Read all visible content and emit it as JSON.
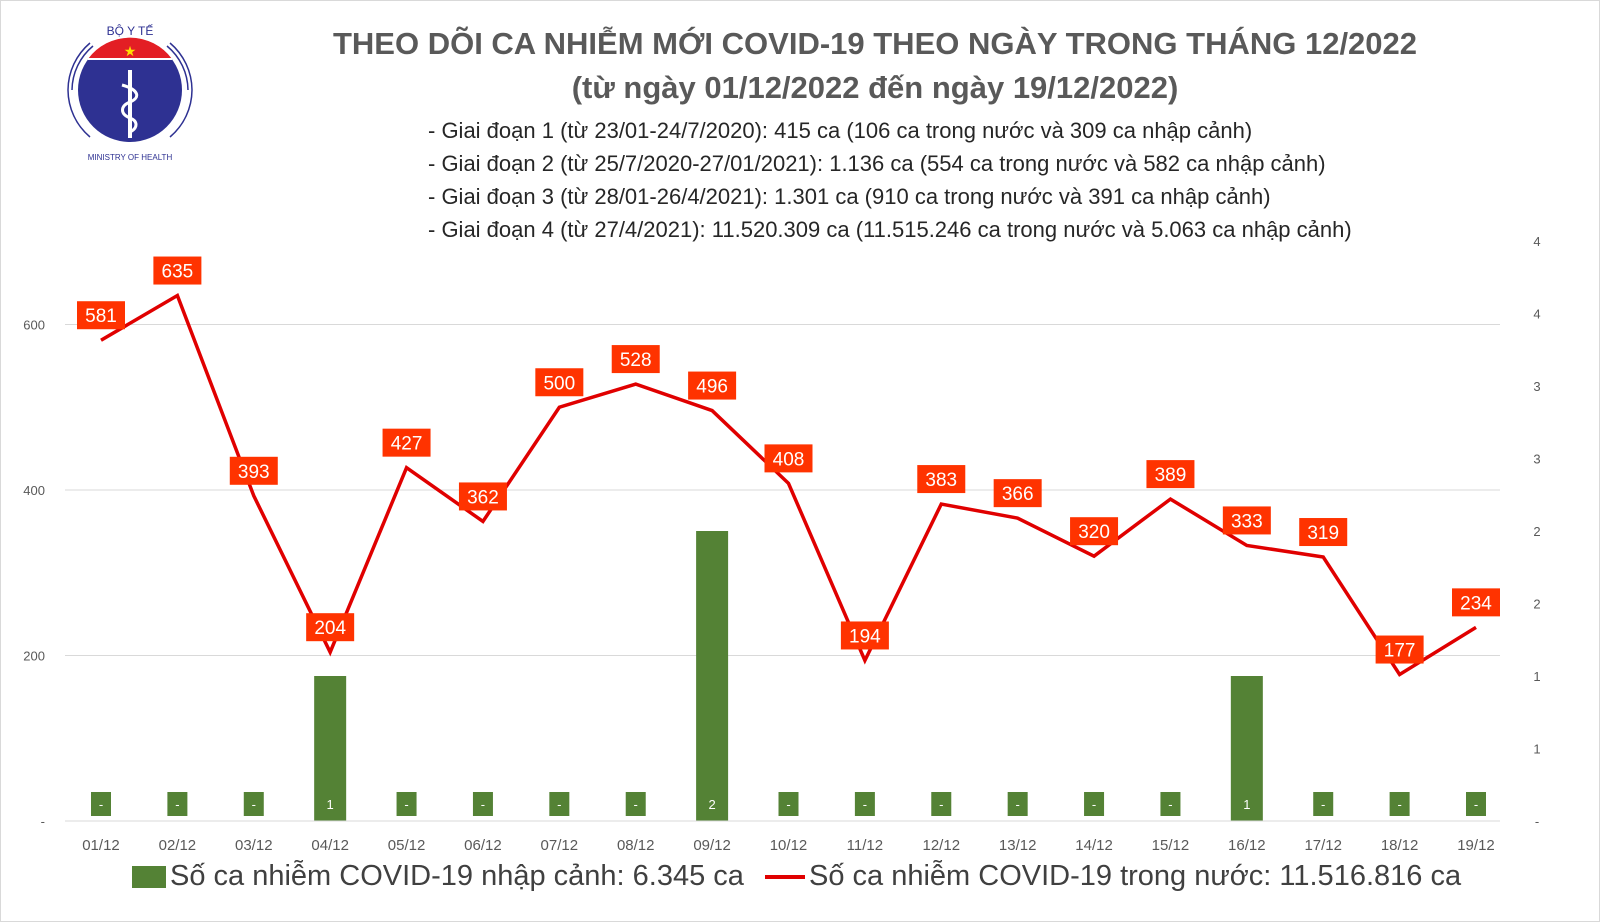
{
  "logo": {
    "text_top": "BỘ Y TẾ",
    "text_bottom": "MINISTRY OF HEALTH"
  },
  "title_line1": "THEO DÕI CA NHIỄM MỚI COVID-19 THEO NGÀY TRONG THÁNG 12/2022",
  "title_line2": "(từ ngày 01/12/2022 đến ngày 19/12/2022)",
  "notes": [
    "- Giai đoạn 1 (từ 23/01-24/7/2020): 415 ca (106 ca trong nước và 309 ca nhập cảnh)",
    "- Giai đoạn 2 (từ 25/7/2020-27/01/2021): 1.136 ca (554 ca trong nước và 582 ca nhập cảnh)",
    "- Giai đoạn 3 (từ 28/01-26/4/2021): 1.301 ca (910 ca trong nước và 391 ca nhập cảnh)",
    "- Giai đoạn 4 (từ 27/4/2021): 11.520.309 ca (11.515.246 ca trong nước và 5.063 ca nhập cảnh)"
  ],
  "chart_data": {
    "type": "bar+line",
    "categories": [
      "01/12",
      "02/12",
      "03/12",
      "04/12",
      "05/12",
      "06/12",
      "07/12",
      "08/12",
      "09/12",
      "10/12",
      "11/12",
      "12/12",
      "13/12",
      "14/12",
      "15/12",
      "16/12",
      "17/12",
      "18/12",
      "19/12"
    ],
    "series": [
      {
        "name": "Số ca nhiễm COVID-19 nhập cảnh: 6.345 ca",
        "type": "bar",
        "axis": "right",
        "color": "#548235",
        "values": [
          0,
          0,
          0,
          1,
          0,
          0,
          0,
          0,
          2,
          0,
          0,
          0,
          0,
          0,
          0,
          1,
          0,
          0,
          0
        ],
        "labels": [
          "-",
          "-",
          "-",
          "1",
          "-",
          "-",
          "-",
          "-",
          "2",
          "-",
          "-",
          "-",
          "-",
          "-",
          "-",
          "1",
          "-",
          "-",
          "-"
        ]
      },
      {
        "name": "Số ca nhiễm COVID-19 trong nước: 11.516.816 ca",
        "type": "line",
        "axis": "left",
        "color": "#e00000",
        "label_bg": "#ff3300",
        "values": [
          581,
          635,
          393,
          204,
          427,
          362,
          500,
          528,
          496,
          408,
          194,
          383,
          366,
          320,
          389,
          333,
          319,
          177,
          234
        ]
      }
    ],
    "left_axis": {
      "ylim": [
        0,
        700
      ],
      "ticks": [
        0,
        200,
        400,
        600
      ],
      "tick_labels": [
        "-",
        "200",
        "400",
        "600"
      ]
    },
    "right_axis": {
      "ylim": [
        0,
        4
      ],
      "ticks": [
        0,
        0.5,
        1,
        1.5,
        2,
        2.5,
        3,
        3.5,
        4
      ],
      "tick_labels": [
        "-",
        "1",
        "1",
        "2",
        "2",
        "3",
        "3",
        "4",
        "4"
      ]
    },
    "grid": true,
    "legend_placement": "bottom"
  }
}
